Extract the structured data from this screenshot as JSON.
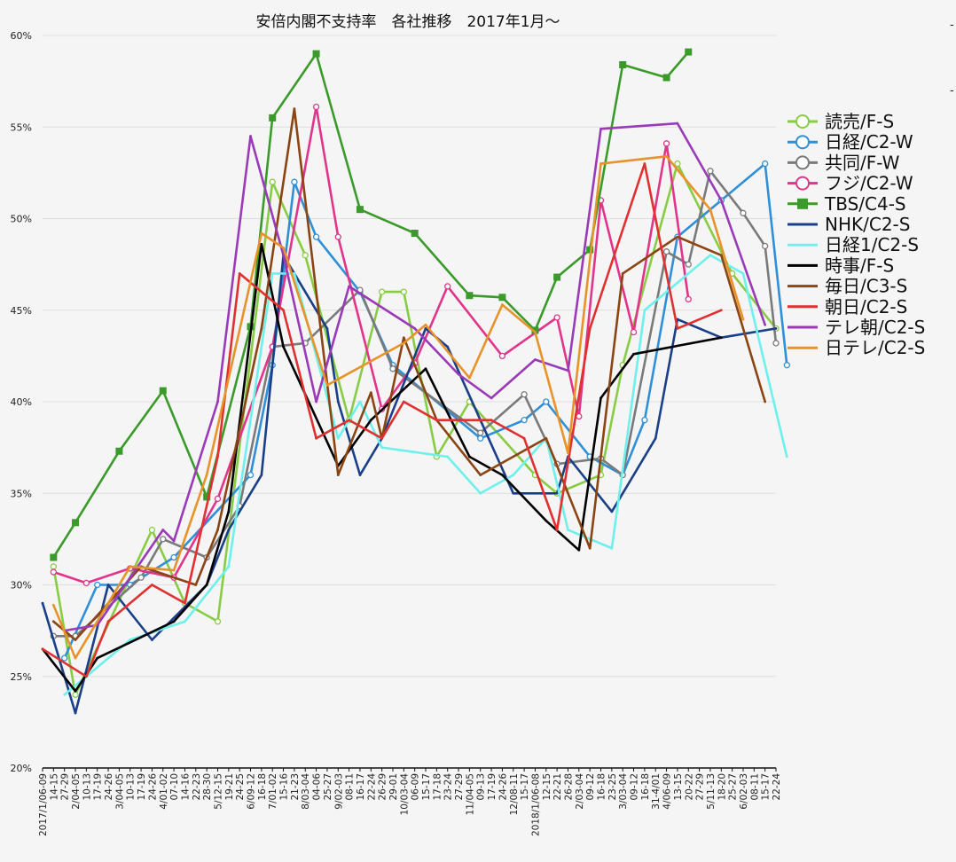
{
  "chart_data": {
    "type": "line",
    "title": "安倍内閣不支持率　各社推移　2017年1月〜",
    "xlabel": "",
    "ylabel": "",
    "ylim": [
      20,
      60
    ],
    "yticks": [
      "20%",
      "25%",
      "30%",
      "35%",
      "40%",
      "45%",
      "50%",
      "55%",
      "60%"
    ],
    "grid": true,
    "legend_position": "right",
    "x": [
      "2017/1/06-09",
      "14-15",
      "27-29",
      "2/04-05",
      "10-13",
      "17-19",
      "24-26",
      "3/04-05",
      "10-13",
      "17-19",
      "24-26",
      "4/01-02",
      "07-10",
      "14-16",
      "22-23",
      "28-30",
      "5/12-15",
      "19-21",
      "24-25",
      "6/09-12",
      "16-18",
      "7/01-02",
      "15-16",
      "21-23",
      "8/03-04",
      "04-06",
      "25-27",
      "9/02-03",
      "08-11",
      "16-17",
      "22-24",
      "26-29",
      "29-01",
      "10/03-04",
      "06-09",
      "15-17",
      "17-18",
      "23-24",
      "27-29",
      "11/04-05",
      "09-13",
      "17-19",
      "24-26",
      "12/08-11",
      "15-17",
      "2018/1/06-08",
      "12-15",
      "22-21",
      "26-28",
      "2/03-04",
      "09-12",
      "16-18",
      "23-25",
      "3/03-04",
      "09-12",
      "16-18",
      "31-4/01",
      "4/06-09",
      "13-15",
      "20-22",
      "27-29",
      "5/11-13",
      "18-20",
      "25-27",
      "6/02-03",
      "08-11",
      "15-17",
      "22-24"
    ],
    "series": [
      {
        "name": "読売/F-S",
        "color": "#88cc44",
        "marker": "circle",
        "points": [
          [
            1,
            31
          ],
          [
            3,
            24
          ],
          [
            10,
            33
          ],
          [
            13,
            29
          ],
          [
            16,
            28
          ],
          [
            21,
            52
          ],
          [
            24,
            48
          ],
          [
            28,
            39
          ],
          [
            31,
            46
          ],
          [
            33,
            46
          ],
          [
            36,
            37
          ],
          [
            39,
            40
          ],
          [
            45,
            36
          ],
          [
            47,
            35
          ],
          [
            51,
            36
          ],
          [
            53,
            42
          ],
          [
            58,
            53
          ],
          [
            63,
            47
          ],
          [
            67,
            44
          ]
        ]
      },
      {
        "name": "日経/C2-W",
        "color": "#2f8fd8",
        "marker": "circle",
        "points": [
          [
            2,
            26
          ],
          [
            5,
            30
          ],
          [
            8,
            30
          ],
          [
            12,
            31.5
          ],
          [
            19,
            36
          ],
          [
            21,
            42
          ],
          [
            23,
            52
          ],
          [
            25,
            49
          ],
          [
            29,
            46
          ],
          [
            32,
            42
          ],
          [
            40,
            38
          ],
          [
            44,
            39
          ],
          [
            46,
            40
          ],
          [
            50,
            37
          ],
          [
            53,
            36
          ],
          [
            55,
            39
          ],
          [
            58,
            49
          ],
          [
            62,
            51
          ],
          [
            66,
            53
          ],
          [
            68,
            42
          ]
        ]
      },
      {
        "name": "共同/F-W",
        "color": "#7a7a7a",
        "marker": "circle",
        "points": [
          [
            1,
            27.2
          ],
          [
            3,
            27.2
          ],
          [
            9,
            30.4
          ],
          [
            11,
            32.5
          ],
          [
            15,
            31.5
          ],
          [
            18,
            34.3
          ],
          [
            21,
            43
          ],
          [
            24,
            43.2
          ],
          [
            29,
            46.1
          ],
          [
            32,
            41.8
          ],
          [
            40,
            38.3
          ],
          [
            44,
            40.4
          ],
          [
            47,
            36.6
          ],
          [
            51,
            36.9
          ],
          [
            53,
            36
          ],
          [
            57,
            48.2
          ],
          [
            59,
            47.5
          ],
          [
            61,
            52.6
          ],
          [
            64,
            50.3
          ],
          [
            66,
            48.5
          ],
          [
            67,
            43.2
          ]
        ]
      },
      {
        "name": "フジ/C2-W",
        "color": "#e0358a",
        "marker": "circle",
        "points": [
          [
            1,
            30.7
          ],
          [
            4,
            30.1
          ],
          [
            8,
            30.9
          ],
          [
            12,
            30.4
          ],
          [
            16,
            34.7
          ],
          [
            21,
            43
          ],
          [
            25,
            56.1
          ],
          [
            27,
            49
          ],
          [
            31,
            39.6
          ],
          [
            34,
            42.1
          ],
          [
            37,
            46.3
          ],
          [
            42,
            42.5
          ],
          [
            47,
            44.6
          ],
          [
            49,
            39.2
          ],
          [
            51,
            51
          ],
          [
            54,
            43.8
          ],
          [
            57,
            54.1
          ],
          [
            59,
            45.6
          ]
        ]
      },
      {
        "name": "TBS/C4-S",
        "color": "#3a9a2a",
        "marker": "square",
        "points": [
          [
            1,
            31.5
          ],
          [
            3,
            33.4
          ],
          [
            7,
            37.3
          ],
          [
            11,
            40.6
          ],
          [
            15,
            34.8
          ],
          [
            19,
            44.1
          ],
          [
            21,
            55.5
          ],
          [
            25,
            59
          ],
          [
            29,
            50.5
          ],
          [
            34,
            49.2
          ],
          [
            39,
            45.8
          ],
          [
            42,
            45.7
          ],
          [
            45,
            43.9
          ],
          [
            47,
            46.8
          ],
          [
            50,
            48.3
          ],
          [
            53,
            58.4
          ],
          [
            57,
            57.7
          ],
          [
            59,
            59.1
          ]
        ]
      },
      {
        "name": "NHK/C2-S",
        "color": "#1a3f88",
        "marker": "none",
        "points": [
          [
            0,
            29
          ],
          [
            3,
            23
          ],
          [
            6,
            30
          ],
          [
            10,
            27
          ],
          [
            15,
            30
          ],
          [
            17,
            33
          ],
          [
            20,
            36
          ],
          [
            22,
            48
          ],
          [
            26,
            44
          ],
          [
            27,
            40
          ],
          [
            29,
            36
          ],
          [
            31,
            38
          ],
          [
            35,
            44
          ],
          [
            37,
            43
          ],
          [
            40,
            39
          ],
          [
            43,
            35
          ],
          [
            47,
            35
          ],
          [
            48,
            37
          ],
          [
            52,
            34
          ],
          [
            56,
            38
          ],
          [
            58,
            44.5
          ],
          [
            62,
            43.5
          ],
          [
            67,
            44
          ]
        ]
      },
      {
        "name": "日経1/C2-S",
        "color": "#6ef0ec",
        "marker": "none",
        "points": [
          [
            2,
            24
          ],
          [
            4,
            25
          ],
          [
            8,
            27
          ],
          [
            13,
            28
          ],
          [
            17,
            31
          ],
          [
            21,
            47
          ],
          [
            23,
            47
          ],
          [
            27,
            38
          ],
          [
            29,
            40
          ],
          [
            31,
            37.5
          ],
          [
            37,
            37
          ],
          [
            40,
            35
          ],
          [
            43,
            36
          ],
          [
            46,
            38
          ],
          [
            48,
            33
          ],
          [
            52,
            32
          ],
          [
            55,
            45
          ],
          [
            61,
            48
          ],
          [
            64,
            47
          ],
          [
            68,
            37
          ]
        ]
      },
      {
        "name": "時事/F-S",
        "color": "#000000",
        "marker": "none",
        "points": [
          [
            0,
            26.5
          ],
          [
            3,
            24.2
          ],
          [
            5,
            26
          ],
          [
            12,
            28
          ],
          [
            15,
            30
          ],
          [
            17,
            34
          ],
          [
            20,
            48.6
          ],
          [
            22,
            43
          ],
          [
            27,
            36.5
          ],
          [
            30,
            39
          ],
          [
            35,
            41.8
          ],
          [
            39,
            37
          ],
          [
            42,
            36
          ],
          [
            46,
            33.5
          ],
          [
            49,
            31.9
          ],
          [
            51,
            40.2
          ],
          [
            54,
            42.6
          ],
          [
            62,
            43.5
          ]
        ]
      },
      {
        "name": "毎日/C3-S",
        "color": "#8b4513",
        "marker": "none",
        "points": [
          [
            1,
            28
          ],
          [
            3,
            27
          ],
          [
            9,
            31
          ],
          [
            14,
            30
          ],
          [
            16,
            33
          ],
          [
            20,
            44
          ],
          [
            23,
            56
          ],
          [
            27,
            36
          ],
          [
            30,
            40.5
          ],
          [
            31,
            38
          ],
          [
            33,
            43.5
          ],
          [
            36,
            39
          ],
          [
            40,
            36
          ],
          [
            46,
            38
          ],
          [
            50,
            32
          ],
          [
            53,
            47
          ],
          [
            58,
            49
          ],
          [
            62,
            48
          ],
          [
            66,
            40
          ]
        ]
      },
      {
        "name": "朝日/C2-S",
        "color": "#e03030",
        "marker": "none",
        "points": [
          [
            0,
            26.5
          ],
          [
            4,
            25
          ],
          [
            6,
            28
          ],
          [
            10,
            30
          ],
          [
            13,
            29
          ],
          [
            16,
            37
          ],
          [
            18,
            47
          ],
          [
            22,
            45
          ],
          [
            25,
            38
          ],
          [
            28,
            39
          ],
          [
            31,
            38
          ],
          [
            33,
            40
          ],
          [
            36,
            39
          ],
          [
            41,
            39
          ],
          [
            44,
            38
          ],
          [
            47,
            33
          ],
          [
            50,
            44
          ],
          [
            55,
            53
          ],
          [
            58,
            44
          ],
          [
            62,
            45
          ]
        ]
      },
      {
        "name": "テレ朝/C2-S",
        "color": "#9a3ab8",
        "marker": "none",
        "points": [
          [
            2,
            27.5
          ],
          [
            5,
            27.8
          ],
          [
            11,
            33
          ],
          [
            12,
            32.4
          ],
          [
            16,
            40
          ],
          [
            19,
            54.5
          ],
          [
            22,
            48
          ],
          [
            25,
            40
          ],
          [
            28,
            46.3
          ],
          [
            34,
            44
          ],
          [
            38,
            41.5
          ],
          [
            41,
            40.2
          ],
          [
            45,
            42.3
          ],
          [
            48,
            41.7
          ],
          [
            51,
            54.9
          ],
          [
            58,
            55.2
          ],
          [
            62,
            51
          ],
          [
            66,
            44.2
          ]
        ]
      },
      {
        "name": "日テレ/C2-S",
        "color": "#e8922a",
        "marker": "none",
        "points": [
          [
            1,
            28.9
          ],
          [
            3,
            26
          ],
          [
            8,
            31
          ],
          [
            12,
            30.8
          ],
          [
            15,
            36
          ],
          [
            20,
            49.2
          ],
          [
            22,
            48.4
          ],
          [
            26,
            40.9
          ],
          [
            33,
            43.2
          ],
          [
            35,
            44.2
          ],
          [
            39,
            41.3
          ],
          [
            42,
            45.3
          ],
          [
            45,
            43.8
          ],
          [
            48,
            37.2
          ],
          [
            51,
            53
          ],
          [
            57,
            53.4
          ],
          [
            61,
            50.5
          ],
          [
            64,
            44.5
          ]
        ]
      }
    ],
    "right_edge_marks": [
      "-",
      "-"
    ]
  }
}
